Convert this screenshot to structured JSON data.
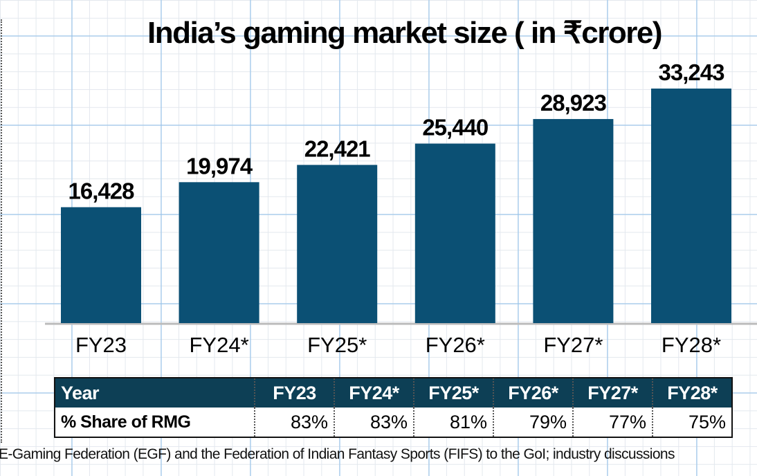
{
  "chart_data": {
    "type": "bar",
    "title": "India’s gaming market size ( in ₹crore)",
    "categories": [
      "FY23",
      "FY24*",
      "FY25*",
      "FY26*",
      "FY27*",
      "FY28*"
    ],
    "values": [
      16428,
      19974,
      22421,
      25440,
      28923,
      33243
    ],
    "value_labels": [
      "16,428",
      "19,974",
      "22,421",
      "25,440",
      "28,923",
      "33,243"
    ],
    "ylim": [
      0,
      33243
    ],
    "grid": false,
    "bar_color": "#0b5074"
  },
  "table": {
    "header_label": "Year",
    "row_label": "% Share of RMG",
    "columns": [
      "FY23",
      "FY24*",
      "FY25*",
      "FY26*",
      "FY27*",
      "FY28*"
    ],
    "values": [
      "83%",
      "83%",
      "81%",
      "79%",
      "77%",
      "75%"
    ],
    "header_color": "#0d3f55"
  },
  "source": "E-Gaming Federation (EGF) and the Federation of Indian Fantasy Sports (FIFS) to the GoI; industry discussions"
}
